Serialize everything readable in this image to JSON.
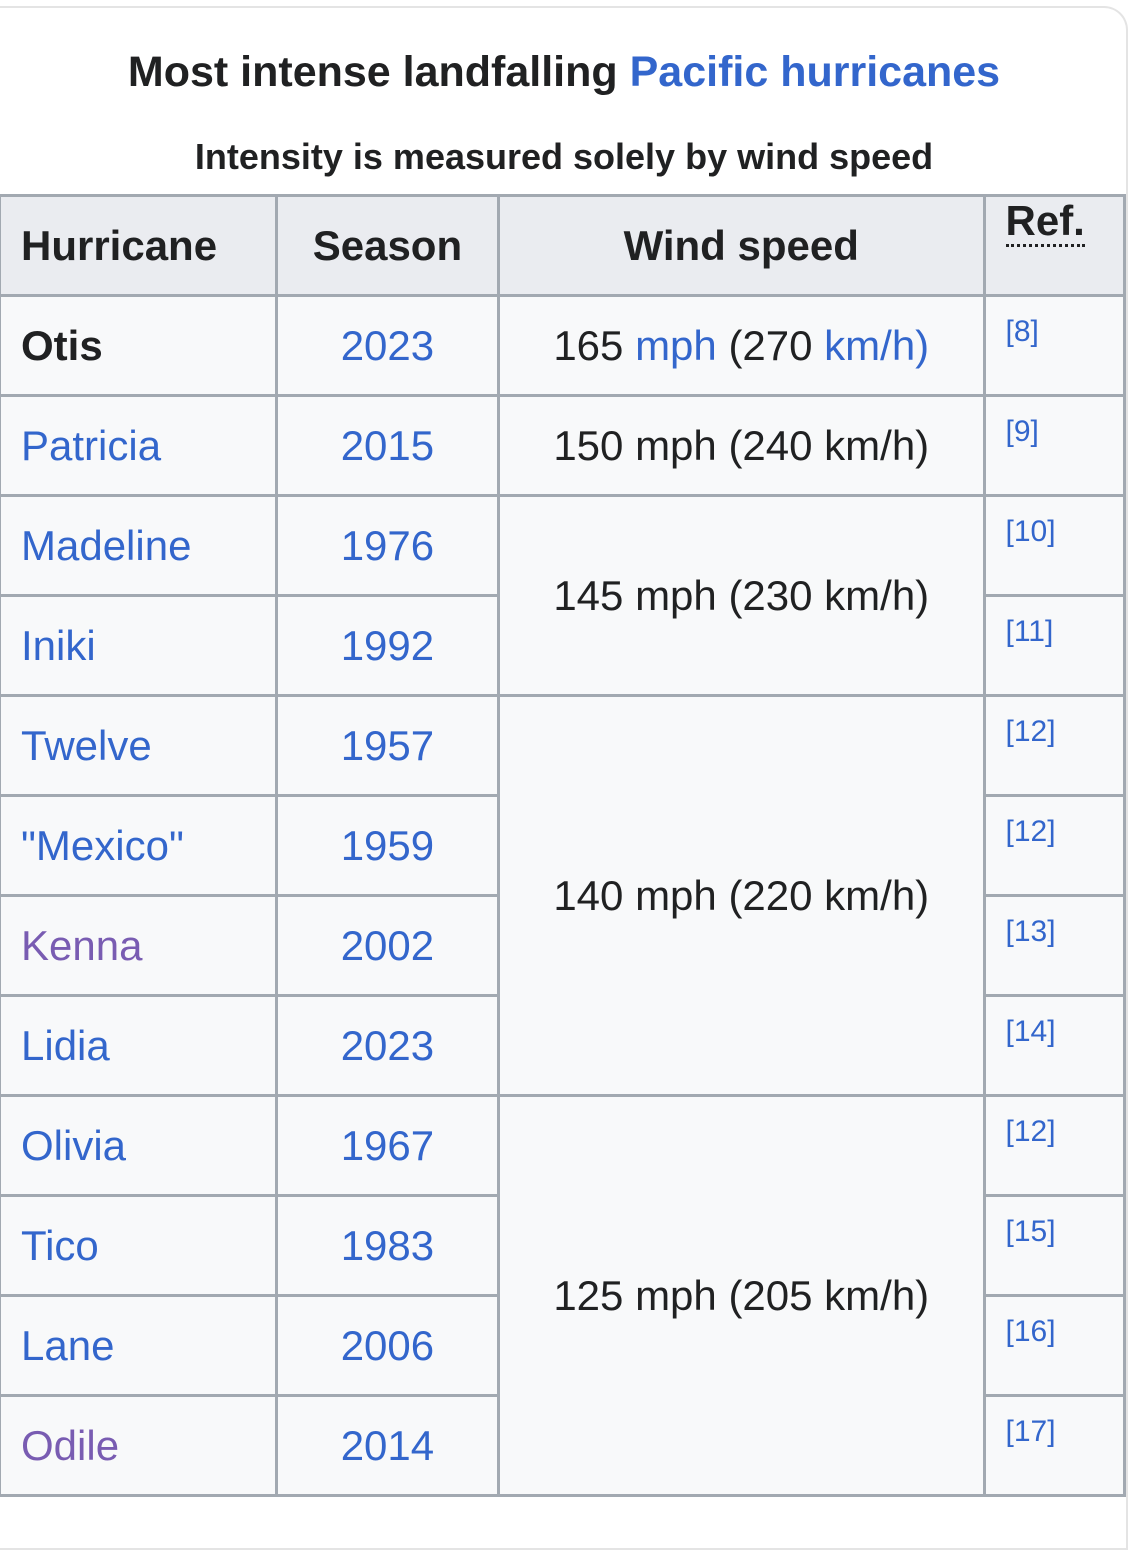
{
  "title": {
    "text": "Most intense landfalling",
    "link": "Pacific hurricanes"
  },
  "subtitle": "Intensity is measured solely by wind speed",
  "table": {
    "headers": [
      "Hurricane",
      "Season",
      "Wind speed",
      "Ref."
    ],
    "rows": [
      {
        "name": "Otis",
        "season": "2023",
        "ref": "[8]",
        "color": "#202122",
        "bold": true
      },
      {
        "name": "Patricia",
        "season": "2015",
        "ref": "[9]",
        "color": "#3366cc"
      },
      {
        "name": "Madeline",
        "season": "1976",
        "ref": "[10]",
        "color": "#3366cc"
      },
      {
        "name": "Iniki",
        "season": "1992",
        "ref": "[11]",
        "color": "#3366cc"
      },
      {
        "name": "Twelve",
        "season": "1957",
        "ref": "[12]",
        "color": "#3366cc"
      },
      {
        "name": "\"Mexico\"",
        "season": "1959",
        "ref": "[12]",
        "color": "#3366cc"
      },
      {
        "name": "Kenna",
        "season": "2002",
        "ref": "[13]",
        "color": "#795cb2"
      },
      {
        "name": "Lidia",
        "season": "2023",
        "ref": "[14]",
        "color": "#3366cc"
      },
      {
        "name": "Olivia",
        "season": "1967",
        "ref": "[12]",
        "color": "#3366cc"
      },
      {
        "name": "Tico",
        "season": "1983",
        "ref": "[15]",
        "color": "#3366cc"
      },
      {
        "name": "Lane",
        "season": "2006",
        "ref": "[16]",
        "color": "#3366cc"
      },
      {
        "name": "Odile",
        "season": "2014",
        "ref": "[17]",
        "color": "#795cb2"
      }
    ],
    "wind": [
      {
        "parts": [
          "165",
          "mph",
          "(270",
          "km/h)"
        ],
        "rows": 1,
        "linked": true
      },
      {
        "parts": [
          "150",
          "mph",
          "(240",
          "km/h)"
        ],
        "rows": 1
      },
      {
        "parts": [
          "145",
          "mph",
          "(230",
          "km/h)"
        ],
        "rows": 2
      },
      {
        "parts": [
          "140",
          "mph",
          "(220",
          "km/h)"
        ],
        "rows": 4
      },
      {
        "parts": [
          "125",
          "mph",
          "(205",
          "km/h)"
        ],
        "rows": 4
      }
    ]
  }
}
